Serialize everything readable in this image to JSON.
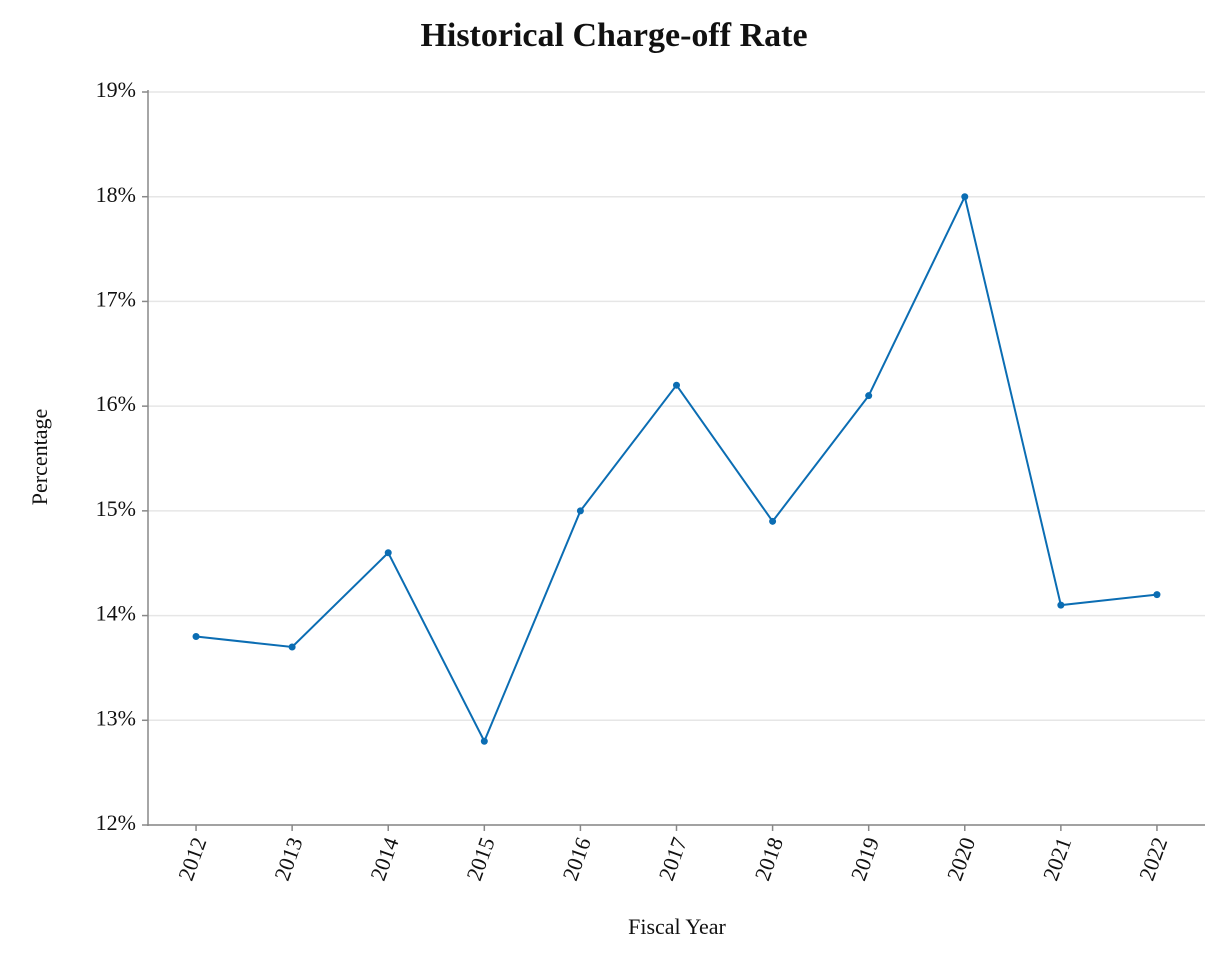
{
  "chart_data": {
    "type": "line",
    "title": "Historical Charge-off Rate",
    "x_label": "Fiscal Year",
    "y_label": "Percentage",
    "categories": [
      "2012",
      "2013",
      "2014",
      "2015",
      "2016",
      "2017",
      "2018",
      "2019",
      "2020",
      "2021",
      "2022"
    ],
    "values": [
      13.8,
      13.7,
      14.6,
      12.8,
      15.0,
      16.2,
      14.9,
      16.1,
      18.0,
      14.1,
      14.2
    ],
    "color": "#0b6db3",
    "ylim": [
      12,
      19
    ],
    "yticks": [
      {
        "value": 12,
        "label": "12%"
      },
      {
        "value": 13,
        "label": "13%"
      },
      {
        "value": 14,
        "label": "14%"
      },
      {
        "value": 15,
        "label": "15%"
      },
      {
        "value": 16,
        "label": "16%"
      },
      {
        "value": 17,
        "label": "17%"
      },
      {
        "value": 18,
        "label": "18%"
      },
      {
        "value": 19,
        "label": "19%"
      }
    ],
    "grid": true
  }
}
